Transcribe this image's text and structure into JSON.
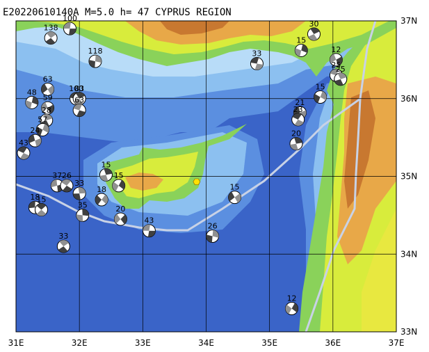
{
  "title": "E20220610140A  M=5.0  h= 47  CYPRUS REGION",
  "axes": {
    "x_ticks": [
      "31E",
      "32E",
      "33E",
      "34E",
      "35E",
      "36E",
      "37E"
    ],
    "y_ticks": [
      "37N",
      "36N",
      "35N",
      "34N",
      "33N"
    ],
    "lon_range": [
      31,
      37
    ],
    "lat_range": [
      33,
      37
    ]
  },
  "colors": {
    "deep_sea": "#3a64c8",
    "mid_sea": "#5b8fe0",
    "shallow_sea": "#8cc0f0",
    "shelf": "#b8dcf8",
    "lowland": "#8ad25a",
    "plain": "#d8ec3c",
    "upland": "#e8e840",
    "hill": "#e8a848",
    "mountain": "#c87830",
    "grid": "#000000",
    "plate_boundary": "#c8d2e6",
    "epicenter": "#ffe000"
  },
  "epicenter": {
    "lon": 33.85,
    "lat": 34.93
  },
  "mechanisms": [
    {
      "lon": 31.85,
      "lat": 36.9,
      "depth": "100"
    },
    {
      "lon": 31.55,
      "lat": 36.78,
      "depth": "138"
    },
    {
      "lon": 32.25,
      "lat": 36.48,
      "depth": "118"
    },
    {
      "lon": 31.5,
      "lat": 36.12,
      "depth": "63"
    },
    {
      "lon": 31.95,
      "lat": 36.0,
      "depth": "100"
    },
    {
      "lon": 32.0,
      "lat": 36.0,
      "depth": "83"
    },
    {
      "lon": 31.25,
      "lat": 35.95,
      "depth": "48"
    },
    {
      "lon": 31.5,
      "lat": 35.88,
      "depth": "59"
    },
    {
      "lon": 32.0,
      "lat": 35.85,
      "depth": "63"
    },
    {
      "lon": 31.48,
      "lat": 35.72,
      "depth": "28"
    },
    {
      "lon": 31.42,
      "lat": 35.6,
      "depth": "57"
    },
    {
      "lon": 31.3,
      "lat": 35.46,
      "depth": "24"
    },
    {
      "lon": 31.12,
      "lat": 35.3,
      "depth": "43"
    },
    {
      "lon": 32.42,
      "lat": 35.02,
      "depth": "15"
    },
    {
      "lon": 32.62,
      "lat": 34.88,
      "depth": "15"
    },
    {
      "lon": 31.65,
      "lat": 34.88,
      "depth": "37"
    },
    {
      "lon": 31.8,
      "lat": 34.88,
      "depth": "26"
    },
    {
      "lon": 32.0,
      "lat": 34.78,
      "depth": "33"
    },
    {
      "lon": 32.35,
      "lat": 34.7,
      "depth": "18"
    },
    {
      "lon": 31.3,
      "lat": 34.6,
      "depth": "18"
    },
    {
      "lon": 31.4,
      "lat": 34.57,
      "depth": "15"
    },
    {
      "lon": 32.05,
      "lat": 34.5,
      "depth": "35"
    },
    {
      "lon": 32.65,
      "lat": 34.45,
      "depth": "20"
    },
    {
      "lon": 33.1,
      "lat": 34.3,
      "depth": "43"
    },
    {
      "lon": 31.75,
      "lat": 34.1,
      "depth": "33"
    },
    {
      "lon": 34.1,
      "lat": 34.23,
      "depth": "26"
    },
    {
      "lon": 34.45,
      "lat": 34.73,
      "depth": "15"
    },
    {
      "lon": 34.8,
      "lat": 36.45,
      "depth": "33"
    },
    {
      "lon": 35.7,
      "lat": 36.83,
      "depth": "30"
    },
    {
      "lon": 35.5,
      "lat": 36.62,
      "depth": "15"
    },
    {
      "lon": 36.05,
      "lat": 36.5,
      "depth": "12"
    },
    {
      "lon": 36.05,
      "lat": 36.3,
      "depth": "25"
    },
    {
      "lon": 36.12,
      "lat": 36.25,
      "depth": "25"
    },
    {
      "lon": 35.8,
      "lat": 36.02,
      "depth": "15"
    },
    {
      "lon": 35.48,
      "lat": 35.82,
      "depth": "21"
    },
    {
      "lon": 35.45,
      "lat": 35.73,
      "depth": "23"
    },
    {
      "lon": 35.42,
      "lat": 35.42,
      "depth": "20"
    },
    {
      "lon": 35.35,
      "lat": 33.3,
      "depth": "12"
    }
  ]
}
